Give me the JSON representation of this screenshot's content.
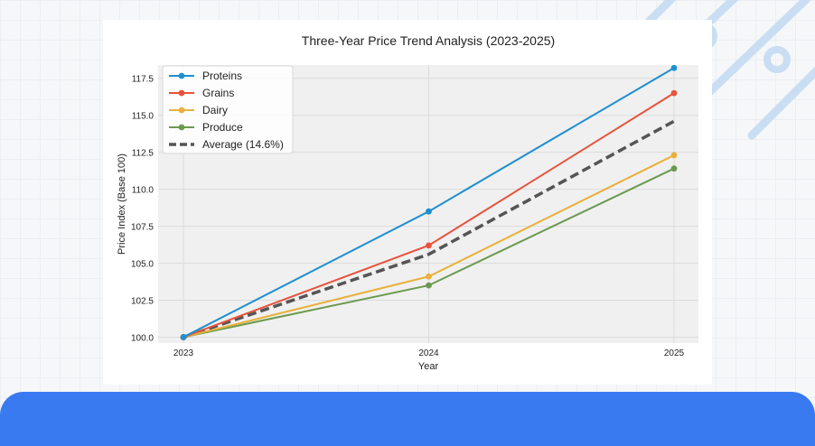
{
  "chart_data": {
    "type": "line",
    "title": "Three-Year Price Trend Analysis (2023-2025)",
    "xlabel": "Year",
    "ylabel": "Price Index (Base 100)",
    "x": [
      "2023",
      "2024",
      "2025"
    ],
    "ylim": [
      99.6,
      118.4
    ],
    "yticks": [
      "100.0",
      "102.5",
      "105.0",
      "107.5",
      "110.0",
      "112.5",
      "115.0",
      "117.5"
    ],
    "grid": true,
    "legend_position": "top-left",
    "series": [
      {
        "name": "Proteins",
        "values": [
          100.0,
          108.5,
          118.2
        ],
        "color": "#1f8fd1",
        "style": "solid",
        "markers": true
      },
      {
        "name": "Grains",
        "values": [
          100.0,
          106.2,
          116.5
        ],
        "color": "#e8533a",
        "style": "solid",
        "markers": true
      },
      {
        "name": "Dairy",
        "values": [
          100.0,
          104.1,
          112.3
        ],
        "color": "#e9b13c",
        "style": "solid",
        "markers": true
      },
      {
        "name": "Produce",
        "values": [
          100.0,
          103.5,
          111.4
        ],
        "color": "#6b9a4f",
        "style": "solid",
        "markers": true
      },
      {
        "name": "Average (14.6%)",
        "values": [
          100.0,
          105.6,
          114.6
        ],
        "color": "#555555",
        "style": "dashed",
        "markers": false
      }
    ]
  }
}
